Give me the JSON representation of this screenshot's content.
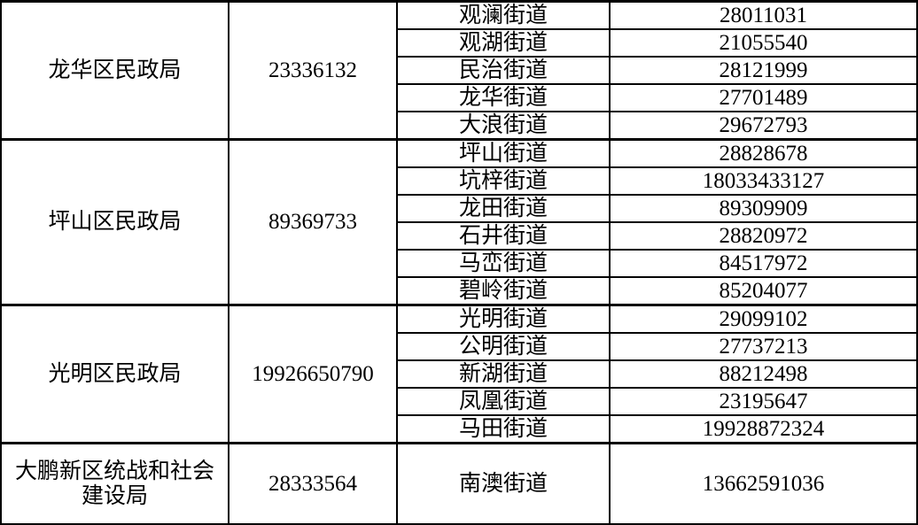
{
  "colors": {
    "background": "#ffffff",
    "border": "#000000",
    "text": "#000000"
  },
  "table": {
    "groups": [
      {
        "bureau": "龙华区民政局",
        "bureau_phone": "23336132",
        "streets": [
          {
            "name": "观澜街道",
            "phone": "28011031"
          },
          {
            "name": "观湖街道",
            "phone": "21055540"
          },
          {
            "name": "民治街道",
            "phone": "28121999"
          },
          {
            "name": "龙华街道",
            "phone": "27701489"
          },
          {
            "name": "大浪街道",
            "phone": "29672793"
          }
        ]
      },
      {
        "bureau": "坪山区民政局",
        "bureau_phone": "89369733",
        "streets": [
          {
            "name": "坪山街道",
            "phone": "28828678"
          },
          {
            "name": "坑梓街道",
            "phone": "18033433127"
          },
          {
            "name": "龙田街道",
            "phone": "89309909"
          },
          {
            "name": "石井街道",
            "phone": "28820972"
          },
          {
            "name": "马峦街道",
            "phone": "84517972"
          },
          {
            "name": "碧岭街道",
            "phone": "85204077"
          }
        ]
      },
      {
        "bureau": "光明区民政局",
        "bureau_phone": "19926650790",
        "streets": [
          {
            "name": "光明街道",
            "phone": "29099102"
          },
          {
            "name": "公明街道",
            "phone": "27737213"
          },
          {
            "name": "新湖街道",
            "phone": "88212498"
          },
          {
            "name": "凤凰街道",
            "phone": "23195647"
          },
          {
            "name": "马田街道",
            "phone": "19928872324"
          }
        ]
      },
      {
        "bureau": "大鹏新区统战和社会建设局",
        "bureau_phone": "28333564",
        "streets": [
          {
            "name": "南澳街道",
            "phone": "13662591036"
          }
        ]
      }
    ]
  }
}
